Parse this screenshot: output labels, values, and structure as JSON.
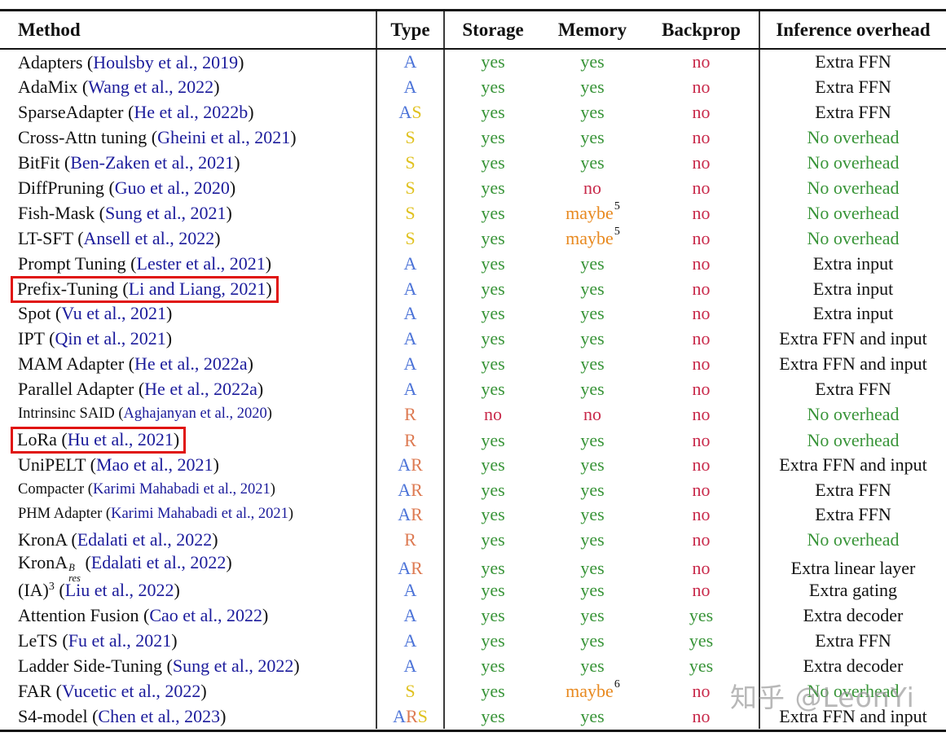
{
  "table": {
    "columns": [
      "Method",
      "Type",
      "Storage",
      "Memory",
      "Backprop",
      "Inference overhead"
    ],
    "rows": [
      {
        "method": "Adapters",
        "citation": "Houlsby et al., 2019",
        "type": "A",
        "storage": "yes",
        "memory": "yes",
        "backprop": "no",
        "inference": "Extra FFN"
      },
      {
        "method": "AdaMix",
        "citation": "Wang et al., 2022",
        "type": "A",
        "storage": "yes",
        "memory": "yes",
        "backprop": "no",
        "inference": "Extra FFN"
      },
      {
        "method": "SparseAdapter",
        "citation": "He et al., 2022b",
        "type": "AS",
        "storage": "yes",
        "memory": "yes",
        "backprop": "no",
        "inference": "Extra FFN"
      },
      {
        "method": "Cross-Attn tuning",
        "citation": "Gheini et al., 2021",
        "type": "S",
        "storage": "yes",
        "memory": "yes",
        "backprop": "no",
        "inference": "No overhead"
      },
      {
        "method": "BitFit",
        "citation": "Ben-Zaken et al., 2021",
        "type": "S",
        "storage": "yes",
        "memory": "yes",
        "backprop": "no",
        "inference": "No overhead"
      },
      {
        "method": "DiffPruning",
        "citation": "Guo et al., 2020",
        "type": "S",
        "storage": "yes",
        "memory": "no",
        "backprop": "no",
        "inference": "No overhead"
      },
      {
        "method": "Fish-Mask",
        "citation": "Sung et al., 2021",
        "type": "S",
        "storage": "yes",
        "memory": "maybe",
        "memory_sup": "5",
        "backprop": "no",
        "inference": "No overhead"
      },
      {
        "method": "LT-SFT",
        "citation": "Ansell et al., 2022",
        "type": "S",
        "storage": "yes",
        "memory": "maybe",
        "memory_sup": "5",
        "backprop": "no",
        "inference": "No overhead"
      },
      {
        "method": "Prompt Tuning",
        "citation": "Lester et al., 2021",
        "type": "A",
        "storage": "yes",
        "memory": "yes",
        "backprop": "no",
        "inference": "Extra input"
      },
      {
        "method": "Prefix-Tuning",
        "citation": "Li and Liang, 2021",
        "type": "A",
        "storage": "yes",
        "memory": "yes",
        "backprop": "no",
        "inference": "Extra input",
        "highlight": true
      },
      {
        "method": "Spot",
        "citation": "Vu et al., 2021",
        "type": "A",
        "storage": "yes",
        "memory": "yes",
        "backprop": "no",
        "inference": "Extra input"
      },
      {
        "method": "IPT",
        "citation": "Qin et al., 2021",
        "type": "A",
        "storage": "yes",
        "memory": "yes",
        "backprop": "no",
        "inference": "Extra FFN and input"
      },
      {
        "method": "MAM Adapter",
        "citation": "He et al., 2022a",
        "type": "A",
        "storage": "yes",
        "memory": "yes",
        "backprop": "no",
        "inference": "Extra FFN and input"
      },
      {
        "method": "Parallel Adapter",
        "citation": "He et al., 2022a",
        "type": "A",
        "storage": "yes",
        "memory": "yes",
        "backprop": "no",
        "inference": "Extra FFN"
      },
      {
        "method": "Intrinsinc SAID",
        "citation": "Aghajanyan et al., 2020",
        "type": "R",
        "storage": "no",
        "memory": "no",
        "backprop": "no",
        "inference": "No overhead",
        "small": true
      },
      {
        "method": "LoRa",
        "citation": "Hu et al., 2021",
        "type": "R",
        "storage": "yes",
        "memory": "yes",
        "backprop": "no",
        "inference": "No overhead",
        "highlight": true
      },
      {
        "method": "UniPELT",
        "citation": "Mao et al., 2021",
        "type": "AR",
        "storage": "yes",
        "memory": "yes",
        "backprop": "no",
        "inference": "Extra FFN and input"
      },
      {
        "method": "Compacter",
        "citation": "Karimi Mahabadi et al., 2021",
        "type": "AR",
        "storage": "yes",
        "memory": "yes",
        "backprop": "no",
        "inference": "Extra FFN",
        "small": true
      },
      {
        "method": "PHM Adapter",
        "citation": "Karimi Mahabadi et al., 2021",
        "type": "AR",
        "storage": "yes",
        "memory": "yes",
        "backprop": "no",
        "inference": "Extra FFN",
        "small": true
      },
      {
        "method": "KronA",
        "citation": "Edalati et al., 2022",
        "type": "R",
        "storage": "yes",
        "memory": "yes",
        "backprop": "no",
        "inference": "No overhead"
      },
      {
        "method": "KronA",
        "method_sup": "B",
        "method_sub": "res",
        "citation": "Edalati et al., 2022",
        "type": "AR",
        "storage": "yes",
        "memory": "yes",
        "backprop": "no",
        "inference": "Extra linear layer"
      },
      {
        "method": "(IA)",
        "method_sup": "3",
        "citation": "Liu et al., 2022",
        "type": "A",
        "storage": "yes",
        "memory": "yes",
        "backprop": "no",
        "inference": "Extra gating"
      },
      {
        "method": "Attention Fusion",
        "citation": "Cao et al., 2022",
        "type": "A",
        "storage": "yes",
        "memory": "yes",
        "backprop": "yes",
        "inference": "Extra decoder"
      },
      {
        "method": "LeTS",
        "citation": "Fu et al., 2021",
        "type": "A",
        "storage": "yes",
        "memory": "yes",
        "backprop": "yes",
        "inference": "Extra FFN"
      },
      {
        "method": "Ladder Side-Tuning",
        "citation": "Sung et al., 2022",
        "type": "A",
        "storage": "yes",
        "memory": "yes",
        "backprop": "yes",
        "inference": "Extra decoder"
      },
      {
        "method": "FAR",
        "citation": "Vucetic et al., 2022",
        "type": "S",
        "storage": "yes",
        "memory": "maybe",
        "memory_sup": "6",
        "backprop": "no",
        "inference": "No overhead"
      },
      {
        "method": "S4-model",
        "citation": "Chen et al., 2023",
        "type": "ARS",
        "storage": "yes",
        "memory": "yes",
        "backprop": "no",
        "inference": "Extra FFN and input"
      }
    ]
  },
  "annotations": {
    "highlighted_methods": [
      "Prefix-Tuning",
      "LoRa"
    ],
    "highlight_color": "#e01310"
  },
  "watermark": "知乎 @LeonYi",
  "colors": {
    "type_A": "#4d74d8",
    "type_S": "#e0c11e",
    "type_R": "#dd7a52",
    "yes": "#389438",
    "no": "#c8294a",
    "maybe": "#e8891f",
    "no_overhead": "#389438",
    "citation": "#1b1b9b"
  }
}
